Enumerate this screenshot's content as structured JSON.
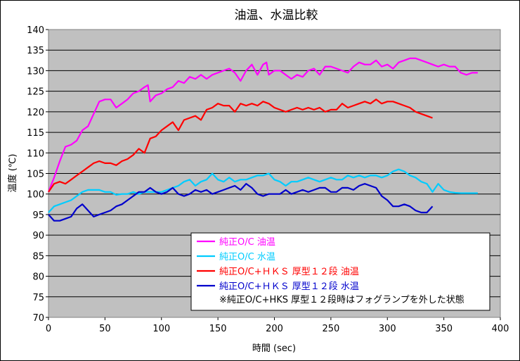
{
  "chart_data": {
    "type": "line",
    "title": "油温、水温比較",
    "xlabel": "時間 (sec)",
    "ylabel": "温度 (℃)",
    "xlim": [
      0,
      400
    ],
    "ylim": [
      70,
      140
    ],
    "xticks": [
      "0",
      "50",
      "100",
      "150",
      "200",
      "250",
      "300",
      "350",
      "400"
    ],
    "yticks": [
      "70",
      "75",
      "80",
      "85",
      "90",
      "95",
      "100",
      "105",
      "110",
      "115",
      "120",
      "125",
      "130",
      "135",
      "140"
    ],
    "grid": true,
    "legend_position": "bottom-right",
    "note": "※純正O/C+HKS 厚型１２段時はフォグランプを外した状態",
    "series": [
      {
        "name": "純正O/C 油温",
        "color": "#ff00ff",
        "x": [
          0,
          5,
          10,
          15,
          20,
          25,
          30,
          35,
          40,
          45,
          50,
          55,
          60,
          65,
          70,
          75,
          80,
          85,
          88,
          90,
          95,
          100,
          105,
          110,
          115,
          120,
          125,
          130,
          135,
          140,
          145,
          150,
          155,
          160,
          165,
          170,
          175,
          180,
          185,
          190,
          193,
          195,
          200,
          205,
          210,
          215,
          220,
          225,
          230,
          235,
          240,
          245,
          250,
          255,
          260,
          265,
          270,
          275,
          280,
          285,
          290,
          295,
          300,
          305,
          310,
          315,
          320,
          325,
          330,
          335,
          340,
          345,
          350,
          355,
          360,
          365,
          370,
          375,
          380
        ],
        "y": [
          100.5,
          104,
          108,
          111.5,
          112,
          113,
          115.5,
          116.5,
          119.5,
          122.5,
          123,
          123,
          121,
          122,
          123,
          124.5,
          125,
          126,
          126.5,
          122.5,
          124,
          124.5,
          125.5,
          126,
          127.5,
          127,
          128.5,
          128,
          129,
          128,
          129,
          129.5,
          130,
          130.5,
          129.5,
          127.5,
          130,
          131.5,
          129,
          131.5,
          132,
          129,
          130,
          130,
          129,
          128,
          129,
          128.5,
          130,
          130.5,
          129,
          131,
          131,
          130.5,
          130,
          129.5,
          131,
          132,
          131.5,
          131.5,
          132.5,
          131,
          131.5,
          130.5,
          132,
          132.5,
          133,
          133,
          132.5,
          132,
          131.5,
          131,
          131.5,
          131,
          131,
          129.5,
          129,
          129.5,
          129.5
        ]
      },
      {
        "name": "純正O/C 水温",
        "color": "#00ccff",
        "x": [
          0,
          5,
          10,
          15,
          20,
          25,
          30,
          35,
          40,
          45,
          50,
          55,
          60,
          65,
          70,
          75,
          80,
          85,
          90,
          95,
          100,
          105,
          110,
          115,
          120,
          125,
          130,
          135,
          140,
          145,
          150,
          155,
          160,
          165,
          170,
          175,
          180,
          185,
          190,
          195,
          200,
          205,
          210,
          215,
          220,
          225,
          230,
          235,
          240,
          245,
          250,
          255,
          260,
          265,
          270,
          275,
          280,
          285,
          290,
          295,
          300,
          305,
          310,
          315,
          320,
          325,
          330,
          335,
          340,
          345,
          350,
          355,
          360,
          365,
          370,
          375,
          380
        ],
        "y": [
          95.5,
          97,
          97.5,
          98,
          98.5,
          99.5,
          100.5,
          101,
          101,
          101,
          100.5,
          100.5,
          99.8,
          100,
          100,
          100.5,
          100,
          100.5,
          100.5,
          100.5,
          100.5,
          101,
          101.5,
          102,
          103,
          103.5,
          102,
          103,
          103.5,
          105,
          103.5,
          103,
          104,
          103,
          103.5,
          103.5,
          104,
          104.5,
          104.5,
          105,
          103.5,
          103,
          102,
          103,
          103,
          103.5,
          104,
          103.5,
          103,
          103.5,
          104,
          103.5,
          103.5,
          104.5,
          104,
          104.5,
          104,
          104.5,
          104.5,
          104,
          104.5,
          105.5,
          106,
          105.5,
          104.5,
          104,
          103,
          102.5,
          100.5,
          102.5,
          101,
          100.5,
          100.3,
          100.2,
          100.2,
          100.2,
          100.2
        ]
      },
      {
        "name": "純正O/C+ＨＫＳ 厚型１２段 油温",
        "color": "#ff0000",
        "x": [
          0,
          5,
          10,
          15,
          20,
          25,
          30,
          35,
          40,
          45,
          50,
          55,
          60,
          65,
          70,
          75,
          80,
          85,
          90,
          95,
          100,
          105,
          110,
          115,
          120,
          125,
          130,
          135,
          140,
          145,
          150,
          155,
          160,
          165,
          170,
          175,
          180,
          185,
          190,
          195,
          200,
          205,
          210,
          215,
          220,
          225,
          230,
          235,
          240,
          245,
          250,
          255,
          260,
          265,
          270,
          275,
          280,
          285,
          290,
          295,
          300,
          305,
          310,
          315,
          320,
          325,
          330,
          335,
          340
        ],
        "y": [
          100.5,
          102.5,
          103,
          102.5,
          103.5,
          104.5,
          105.5,
          106.5,
          107.5,
          108,
          107.5,
          107.5,
          107,
          108,
          108.5,
          109.5,
          111,
          110,
          113.5,
          114,
          115.5,
          116.5,
          117.5,
          115.5,
          118,
          118.5,
          119,
          118,
          120.5,
          121,
          122,
          121.5,
          121.5,
          120,
          122,
          121.5,
          122,
          121.5,
          122.5,
          122,
          121,
          120.5,
          120,
          120.5,
          121,
          120.5,
          121,
          120.5,
          121,
          120,
          120.5,
          120.5,
          122,
          121,
          121.5,
          122,
          122.5,
          122,
          123,
          122,
          122.5,
          122.5,
          122,
          121.5,
          121,
          120,
          119.5,
          119,
          118.5
        ]
      },
      {
        "name": "純正O/C+ＨＫＳ 厚型１２段 水温",
        "color": "#0000cc",
        "x": [
          0,
          5,
          10,
          15,
          20,
          25,
          30,
          35,
          40,
          45,
          50,
          55,
          60,
          65,
          70,
          75,
          80,
          85,
          90,
          95,
          100,
          105,
          110,
          115,
          120,
          125,
          130,
          135,
          140,
          145,
          150,
          155,
          160,
          165,
          170,
          175,
          180,
          185,
          190,
          195,
          200,
          205,
          210,
          215,
          220,
          225,
          230,
          235,
          240,
          245,
          250,
          255,
          260,
          265,
          270,
          275,
          280,
          285,
          290,
          295,
          300,
          305,
          310,
          315,
          320,
          325,
          330,
          335,
          340
        ],
        "y": [
          95,
          93.5,
          93.5,
          94,
          94.5,
          96.5,
          97.5,
          96,
          94.5,
          95,
          95.5,
          96,
          97,
          97.5,
          98.5,
          99.5,
          100.5,
          100.5,
          101.5,
          100.5,
          100,
          100.5,
          101.5,
          100,
          99.5,
          100,
          101,
          100.5,
          101,
          100,
          100.5,
          101,
          101.5,
          102,
          101,
          102.5,
          101.5,
          100,
          99.5,
          100,
          100,
          100,
          101,
          100,
          100.5,
          101,
          100.5,
          101,
          101.5,
          101.5,
          100.5,
          100.5,
          101.5,
          101.5,
          101,
          102,
          102.5,
          102,
          101.5,
          99.5,
          98.5,
          97,
          97,
          97.5,
          97,
          96,
          95.5,
          95.5,
          97
        ]
      }
    ]
  }
}
